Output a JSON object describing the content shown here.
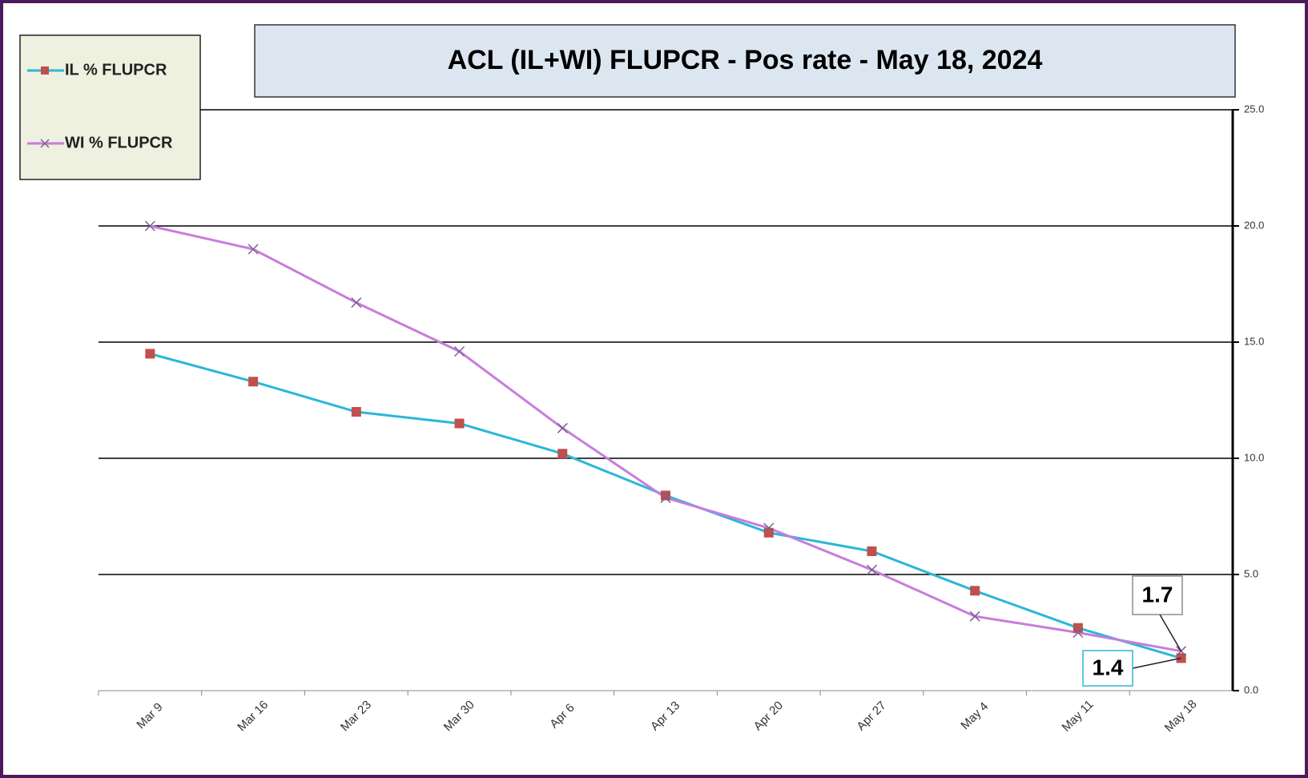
{
  "chart_data": {
    "type": "line",
    "title": "ACL (IL+WI) FLUPCR -  Pos rate - May 18, 2024",
    "categories": [
      "Mar 9",
      "Mar 16",
      "Mar 23",
      "Mar 30",
      "Apr 6",
      "Apr 13",
      "Apr 20",
      "Apr 27",
      "May 4",
      "May 11",
      "May 18"
    ],
    "series": [
      {
        "name": "IL % FLUPCR",
        "color": "#2ab7d8",
        "marker_color": "#c0504d",
        "values": [
          14.5,
          13.3,
          12.0,
          11.5,
          10.2,
          8.4,
          6.8,
          6.0,
          4.3,
          2.7,
          1.4
        ]
      },
      {
        "name": "WI % FLUPCR",
        "color": "#c77ddc",
        "marker_color": "#7f5f8f",
        "values": [
          20.0,
          19.0,
          16.7,
          14.6,
          11.3,
          8.3,
          7.0,
          5.2,
          3.2,
          2.5,
          1.7
        ]
      }
    ],
    "ylim": [
      0,
      25
    ],
    "yticks": [
      {
        "value": 0,
        "label": "0.0"
      },
      {
        "value": 5,
        "label": "5.0"
      },
      {
        "value": 10,
        "label": "10.0"
      },
      {
        "value": 15,
        "label": "15.0"
      },
      {
        "value": 20,
        "label": "20.0"
      },
      {
        "value": 25,
        "label": "25.0"
      }
    ],
    "y_axis_side": "right",
    "grid": true
  }
}
